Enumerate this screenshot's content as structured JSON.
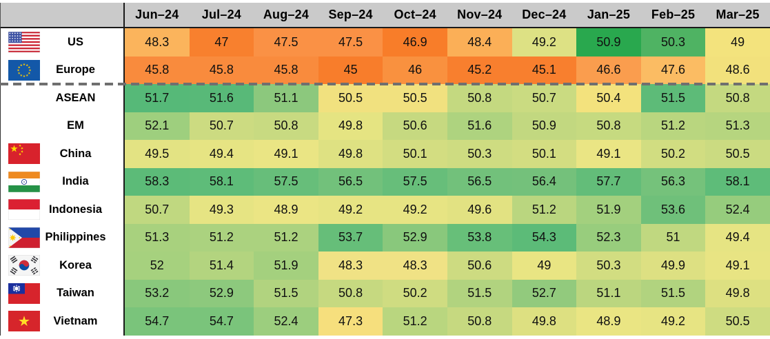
{
  "style": {
    "header_bg": "#CACACA",
    "header_text": "#000000",
    "cell_text": "#101010",
    "label_text": "#000000",
    "table_border": "#1A1A1A",
    "divider_dash_color": "#6F6F6F",
    "page_background": "#FFFFFF"
  },
  "chart_data": {
    "type": "heatmap",
    "columns": [
      "Jun–24",
      "Jul–24",
      "Aug–24",
      "Sep–24",
      "Oct–24",
      "Nov–24",
      "Dec–24",
      "Jan–25",
      "Feb–25",
      "Mar–25"
    ],
    "group_divider_after_row": "Europe",
    "colorscale": "red-yellow-green, normalized per row",
    "rows": [
      {
        "label": "US",
        "flag_icon": "us-flag",
        "values": [
          48.3,
          47,
          47.5,
          47.5,
          46.9,
          48.4,
          49.2,
          50.9,
          50.3,
          49
        ],
        "cell_colors": [
          "#FBB45C",
          "#F8802E",
          "#FA9145",
          "#FA9145",
          "#F87D29",
          "#FBAF57",
          "#DDE184",
          "#29A84E",
          "#4FB363",
          "#F3E37D"
        ]
      },
      {
        "label": "Europe",
        "flag_icon": "eu-flag",
        "values": [
          45.8,
          45.8,
          45.8,
          45,
          46,
          45.2,
          45.1,
          46.6,
          47.6,
          48.6
        ],
        "cell_colors": [
          "#F98B3D",
          "#F98B3D",
          "#F98B3D",
          "#F87D2B",
          "#F9913F",
          "#F87F2E",
          "#F87F2E",
          "#FA9D4E",
          "#FBBC63",
          "#F2E17C"
        ]
      },
      {
        "label": "ASEAN",
        "flag_icon": null,
        "values": [
          51.7,
          51.6,
          51.1,
          50.5,
          50.5,
          50.8,
          50.7,
          50.4,
          51.5,
          50.8
        ],
        "cell_colors": [
          "#56B978",
          "#58B978",
          "#8CC87D",
          "#F1E17F",
          "#F1E17F",
          "#C4D980",
          "#CADB81",
          "#F3E27D",
          "#5DBB78",
          "#C4D980"
        ]
      },
      {
        "label": "EM",
        "flag_icon": null,
        "values": [
          52.1,
          50.7,
          50.8,
          49.8,
          50.6,
          51.6,
          50.9,
          50.8,
          51.2,
          51.3
        ],
        "cell_colors": [
          "#9ECF7E",
          "#CCDB81",
          "#C8DA81",
          "#E5E482",
          "#C6D980",
          "#AED37F",
          "#C2D880",
          "#C6DA80",
          "#B9D67F",
          "#B6D57F"
        ]
      },
      {
        "label": "China",
        "flag_icon": "china-flag",
        "values": [
          49.5,
          49.4,
          49.1,
          49.8,
          50.1,
          50.3,
          50.1,
          49.1,
          50.2,
          50.5
        ],
        "cell_colors": [
          "#E3E383",
          "#E6E483",
          "#EAE584",
          "#DEE182",
          "#D3DD81",
          "#CEDC81",
          "#D3DD81",
          "#EAE584",
          "#D1DD81",
          "#CBDB81"
        ]
      },
      {
        "label": "India",
        "flag_icon": "india-flag",
        "values": [
          58.3,
          58.1,
          57.5,
          56.5,
          57.5,
          56.5,
          56.4,
          57.7,
          56.3,
          58.1
        ],
        "cell_colors": [
          "#5CBB78",
          "#5EBC79",
          "#67BE7A",
          "#72C17B",
          "#67BE7A",
          "#72C17B",
          "#74C17B",
          "#63BD79",
          "#75C27B",
          "#5EBC79"
        ]
      },
      {
        "label": "Indonesia",
        "flag_icon": "indonesia-flag",
        "values": [
          50.7,
          49.3,
          48.9,
          49.2,
          49.2,
          49.6,
          51.2,
          51.9,
          53.6,
          52.4
        ],
        "cell_colors": [
          "#C0D880",
          "#E6E483",
          "#EBE584",
          "#E7E483",
          "#E7E483",
          "#E2E282",
          "#BAD67F",
          "#A3D07E",
          "#6FC07A",
          "#96CC7D"
        ]
      },
      {
        "label": "Philippines",
        "flag_icon": "philippines-flag",
        "values": [
          51.3,
          51.2,
          51.2,
          53.7,
          52.9,
          53.8,
          54.3,
          52.3,
          51,
          49.4
        ],
        "cell_colors": [
          "#A8D17E",
          "#ABD27F",
          "#ABD27F",
          "#66BE79",
          "#89C87C",
          "#67BF79",
          "#5CBB78",
          "#98CD7D",
          "#C0D880",
          "#E6E483"
        ]
      },
      {
        "label": "Korea",
        "flag_icon": "south-korea-flag",
        "values": [
          52,
          51.4,
          51.9,
          48.3,
          48.3,
          50.6,
          49,
          50.3,
          49.9,
          49.1
        ],
        "cell_colors": [
          "#A6D17E",
          "#B3D47F",
          "#A4D07E",
          "#F0E285",
          "#F0E285",
          "#CDDB81",
          "#E9E583",
          "#D2DD81",
          "#DDE082",
          "#E8E483"
        ]
      },
      {
        "label": "Taiwan",
        "flag_icon": "taiwan-flag",
        "values": [
          53.2,
          52.9,
          51.5,
          50.8,
          50.2,
          51.5,
          52.7,
          51.1,
          51.5,
          49.8
        ],
        "cell_colors": [
          "#89C87C",
          "#8DC97D",
          "#B1D37F",
          "#C6D980",
          "#CFDC81",
          "#B1D37F",
          "#92CA7D",
          "#BBD67F",
          "#B1D37F",
          "#DDE081"
        ]
      },
      {
        "label": "Vietnam",
        "flag_icon": "vietnam-flag",
        "values": [
          54.7,
          54.7,
          52.4,
          47.3,
          51.2,
          50.8,
          49.8,
          48.9,
          49.2,
          50.5
        ],
        "cell_colors": [
          "#7AC47B",
          "#7AC47B",
          "#9CCE7E",
          "#F6DF7D",
          "#B9D67F",
          "#C6D980",
          "#DDE081",
          "#EAE583",
          "#E7E483",
          "#CEDC81"
        ]
      }
    ]
  }
}
